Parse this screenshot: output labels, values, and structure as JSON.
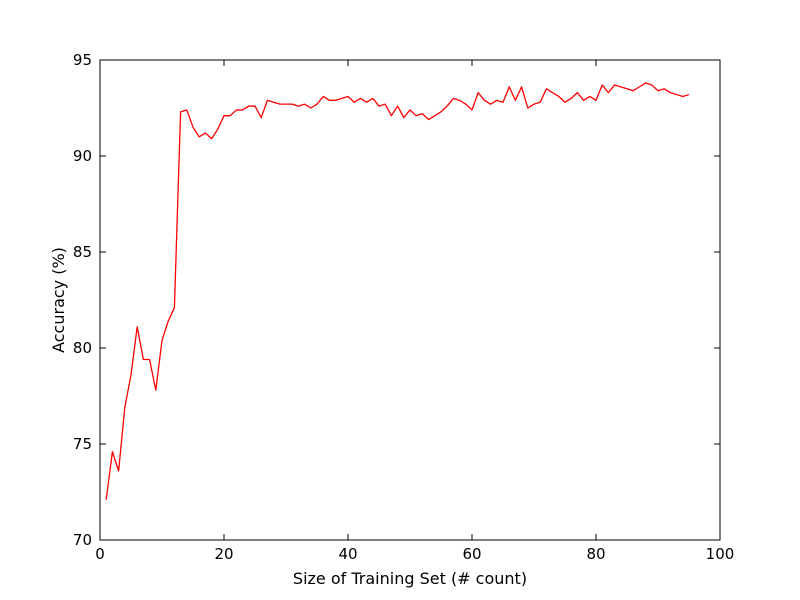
{
  "chart_data": {
    "type": "line",
    "title": "",
    "xlabel": "Size of Training Set (# count)",
    "ylabel": "Accuracy (%)",
    "xlim": [
      0,
      100
    ],
    "ylim": [
      70,
      95
    ],
    "xticks": [
      0,
      20,
      40,
      60,
      80,
      100
    ],
    "yticks": [
      70,
      75,
      80,
      85,
      90,
      95
    ],
    "grid": false,
    "legend": "none",
    "series": [
      {
        "color": "#ff0000",
        "x": [
          1,
          2,
          3,
          4,
          5,
          6,
          7,
          8,
          9,
          10,
          11,
          12,
          13,
          14,
          15,
          16,
          17,
          18,
          19,
          20,
          21,
          22,
          23,
          24,
          25,
          26,
          27,
          28,
          29,
          30,
          31,
          32,
          33,
          34,
          35,
          36,
          37,
          38,
          39,
          40,
          41,
          42,
          43,
          44,
          45,
          46,
          47,
          48,
          49,
          50,
          51,
          52,
          53,
          54,
          55,
          56,
          57,
          58,
          59,
          60,
          61,
          62,
          63,
          64,
          65,
          66,
          67,
          68,
          69,
          70,
          71,
          72,
          73,
          74,
          75,
          76,
          77,
          78,
          79,
          80,
          81,
          82,
          83,
          84,
          85,
          86,
          87,
          88,
          89,
          90,
          91,
          92,
          93,
          94,
          95
        ],
        "y": [
          72.1,
          74.6,
          73.6,
          76.9,
          78.6,
          81.1,
          79.4,
          79.4,
          77.8,
          80.4,
          81.4,
          82.1,
          92.3,
          92.4,
          91.5,
          91.0,
          91.2,
          90.9,
          91.4,
          92.1,
          92.1,
          92.4,
          92.4,
          92.6,
          92.6,
          92.0,
          92.9,
          92.8,
          92.7,
          92.7,
          92.7,
          92.6,
          92.7,
          92.5,
          92.7,
          93.1,
          92.9,
          92.9,
          93.0,
          93.1,
          92.8,
          93.0,
          92.8,
          93.0,
          92.6,
          92.7,
          92.1,
          92.6,
          92.0,
          92.4,
          92.1,
          92.2,
          91.9,
          92.1,
          92.3,
          92.6,
          93.0,
          92.9,
          92.7,
          92.4,
          93.3,
          92.9,
          92.7,
          92.9,
          92.8,
          93.6,
          92.9,
          93.6,
          92.5,
          92.7,
          92.8,
          93.5,
          93.3,
          93.1,
          92.8,
          93.0,
          93.3,
          92.9,
          93.1,
          92.9,
          93.7,
          93.3,
          93.7,
          93.6,
          93.5,
          93.4,
          93.6,
          93.8,
          93.7,
          93.4,
          93.5,
          93.3,
          93.2,
          93.1,
          93.2
        ]
      }
    ]
  }
}
